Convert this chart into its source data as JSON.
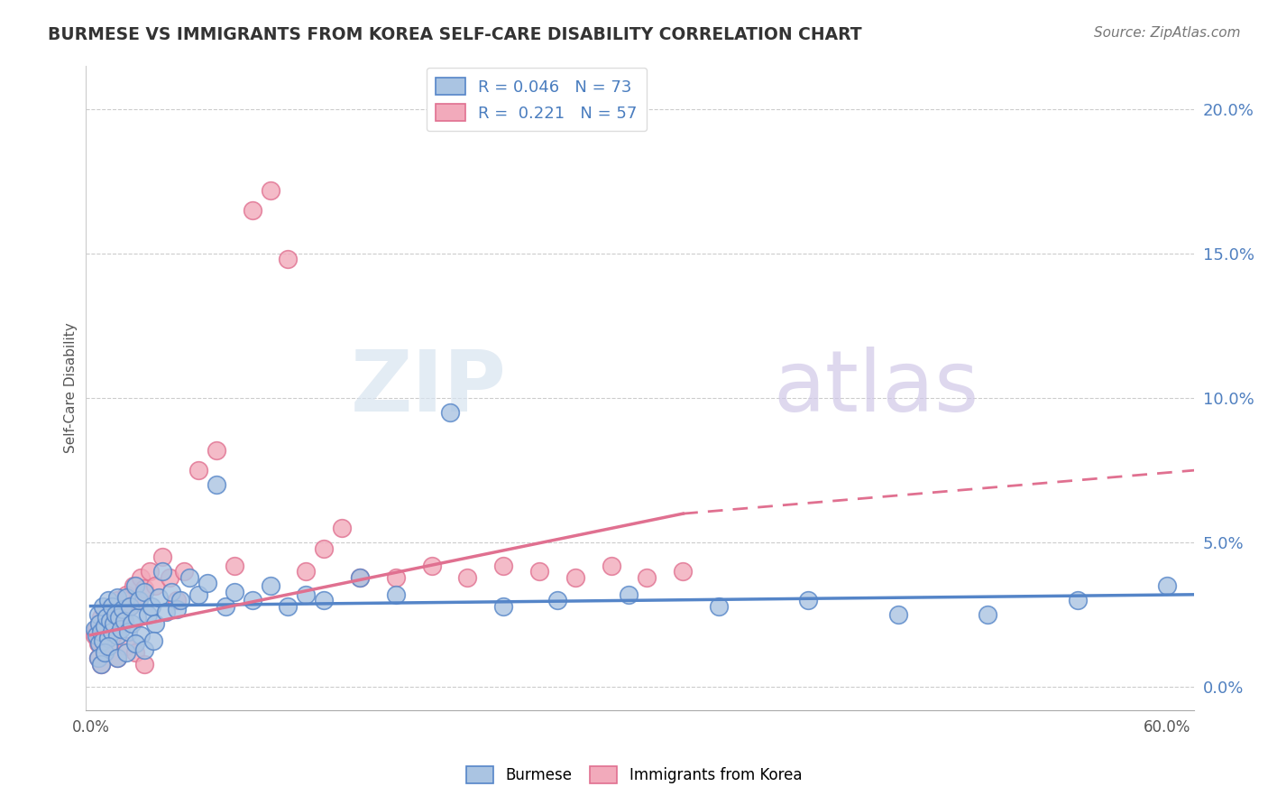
{
  "title": "BURMESE VS IMMIGRANTS FROM KOREA SELF-CARE DISABILITY CORRELATION CHART",
  "source": "Source: ZipAtlas.com",
  "ylabel": "Self-Care Disability",
  "xmin": -0.003,
  "xmax": 0.615,
  "ymin": -0.008,
  "ymax": 0.215,
  "yticks": [
    0.0,
    0.05,
    0.1,
    0.15,
    0.2
  ],
  "ytick_labels": [
    "0.0%",
    "5.0%",
    "10.0%",
    "15.0%",
    "20.0%"
  ],
  "xticks": [
    0.0,
    0.1,
    0.2,
    0.3,
    0.4,
    0.5,
    0.6
  ],
  "xtick_labels": [
    "0.0%",
    "",
    "",
    "",
    "",
    "",
    "60.0%"
  ],
  "burmese_R": 0.046,
  "burmese_N": 73,
  "korea_R": 0.221,
  "korea_N": 57,
  "burmese_color": "#aac4e2",
  "korea_color": "#f2aabb",
  "burmese_line_color": "#5585c8",
  "korea_line_color": "#e07090",
  "watermark_zip": "ZIP",
  "watermark_atlas": "atlas",
  "legend_label_burmese": "Burmese",
  "legend_label_korea": "Immigrants from Korea",
  "burmese_x": [
    0.002,
    0.003,
    0.004,
    0.005,
    0.005,
    0.006,
    0.007,
    0.007,
    0.008,
    0.009,
    0.01,
    0.01,
    0.011,
    0.012,
    0.012,
    0.013,
    0.014,
    0.015,
    0.015,
    0.016,
    0.017,
    0.018,
    0.019,
    0.02,
    0.021,
    0.022,
    0.023,
    0.025,
    0.026,
    0.027,
    0.028,
    0.03,
    0.032,
    0.034,
    0.036,
    0.038,
    0.04,
    0.042,
    0.045,
    0.048,
    0.05,
    0.055,
    0.06,
    0.065,
    0.07,
    0.075,
    0.08,
    0.09,
    0.1,
    0.11,
    0.12,
    0.13,
    0.15,
    0.17,
    0.2,
    0.23,
    0.26,
    0.3,
    0.35,
    0.4,
    0.45,
    0.5,
    0.55,
    0.6,
    0.004,
    0.006,
    0.008,
    0.01,
    0.015,
    0.02,
    0.025,
    0.03,
    0.035
  ],
  "burmese_y": [
    0.02,
    0.018,
    0.025,
    0.015,
    0.022,
    0.019,
    0.028,
    0.016,
    0.021,
    0.024,
    0.017,
    0.03,
    0.023,
    0.019,
    0.028,
    0.022,
    0.025,
    0.018,
    0.031,
    0.024,
    0.02,
    0.027,
    0.023,
    0.031,
    0.019,
    0.028,
    0.022,
    0.035,
    0.024,
    0.03,
    0.018,
    0.033,
    0.025,
    0.028,
    0.022,
    0.031,
    0.04,
    0.026,
    0.033,
    0.027,
    0.03,
    0.038,
    0.032,
    0.036,
    0.07,
    0.028,
    0.033,
    0.03,
    0.035,
    0.028,
    0.032,
    0.03,
    0.038,
    0.032,
    0.095,
    0.028,
    0.03,
    0.032,
    0.028,
    0.03,
    0.025,
    0.025,
    0.03,
    0.035,
    0.01,
    0.008,
    0.012,
    0.014,
    0.01,
    0.012,
    0.015,
    0.013,
    0.016
  ],
  "korea_x": [
    0.002,
    0.003,
    0.004,
    0.005,
    0.005,
    0.006,
    0.007,
    0.008,
    0.009,
    0.01,
    0.011,
    0.012,
    0.013,
    0.014,
    0.015,
    0.016,
    0.017,
    0.018,
    0.02,
    0.022,
    0.024,
    0.026,
    0.028,
    0.03,
    0.033,
    0.036,
    0.04,
    0.044,
    0.048,
    0.052,
    0.06,
    0.07,
    0.08,
    0.09,
    0.1,
    0.11,
    0.12,
    0.13,
    0.14,
    0.15,
    0.17,
    0.19,
    0.21,
    0.23,
    0.25,
    0.27,
    0.29,
    0.31,
    0.33,
    0.004,
    0.006,
    0.008,
    0.012,
    0.015,
    0.02,
    0.025,
    0.03
  ],
  "korea_y": [
    0.018,
    0.02,
    0.015,
    0.022,
    0.016,
    0.024,
    0.018,
    0.026,
    0.02,
    0.022,
    0.019,
    0.028,
    0.023,
    0.025,
    0.03,
    0.022,
    0.028,
    0.025,
    0.032,
    0.028,
    0.035,
    0.03,
    0.038,
    0.034,
    0.04,
    0.035,
    0.045,
    0.038,
    0.03,
    0.04,
    0.075,
    0.082,
    0.042,
    0.165,
    0.172,
    0.148,
    0.04,
    0.048,
    0.055,
    0.038,
    0.038,
    0.042,
    0.038,
    0.042,
    0.04,
    0.038,
    0.042,
    0.038,
    0.04,
    0.01,
    0.008,
    0.012,
    0.015,
    0.01,
    0.014,
    0.012,
    0.008
  ],
  "burmese_line_y_start": 0.028,
  "burmese_line_y_end": 0.032,
  "korea_line_x_start": 0.0,
  "korea_line_y_start": 0.018,
  "korea_line_x_solid_end": 0.33,
  "korea_line_y_solid_end": 0.06,
  "korea_line_x_dash_end": 0.615,
  "korea_line_y_dash_end": 0.075
}
